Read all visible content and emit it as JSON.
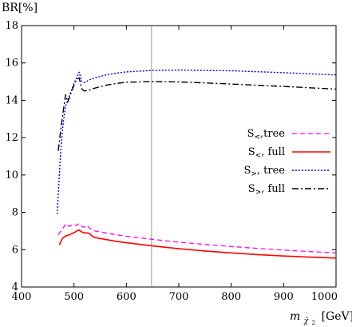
{
  "chart_data": {
    "type": "line",
    "title": "",
    "ylabel": "BR[%]",
    "xlabel": "m_{χ̃₂} [GeV]",
    "xlabel_main": "m",
    "xlabel_sub": "χ̃",
    "xlabel_subsub": "2",
    "xlabel_unit": "[GeV]",
    "xlim": [
      400,
      1000
    ],
    "ylim": [
      4,
      18
    ],
    "xticks": [
      400,
      500,
      600,
      700,
      800,
      900,
      1000
    ],
    "yticks": [
      4,
      6,
      8,
      10,
      12,
      14,
      16,
      18
    ],
    "grid": false,
    "legend_position": "right",
    "reference_line_x": 648,
    "series": [
      {
        "name": "S<,tree",
        "legend_main": "S",
        "legend_sub": "<",
        "legend_rest": ",tree",
        "color": "#ff00ff",
        "dash": "6,4",
        "width": 1.3,
        "x": [
          470,
          478,
          485,
          490,
          495,
          500,
          505,
          510,
          515,
          520,
          525,
          530,
          535,
          540,
          550,
          560,
          580,
          600,
          650,
          700,
          750,
          800,
          850,
          900,
          950,
          1000
        ],
        "y": [
          6.8,
          7.1,
          7.4,
          7.25,
          7.3,
          7.35,
          7.3,
          7.4,
          7.25,
          7.2,
          7.3,
          7.15,
          7.05,
          7.0,
          6.95,
          6.9,
          6.8,
          6.72,
          6.55,
          6.4,
          6.28,
          6.17,
          6.07,
          5.98,
          5.9,
          5.83
        ]
      },
      {
        "name": "S<, full",
        "legend_main": "S",
        "legend_sub": "<",
        "legend_rest": ", full",
        "color": "#ff0000",
        "dash": "",
        "width": 1.6,
        "x": [
          472,
          478,
          485,
          490,
          495,
          500,
          505,
          510,
          515,
          520,
          525,
          530,
          535,
          540,
          550,
          560,
          580,
          600,
          650,
          700,
          750,
          800,
          850,
          900,
          950,
          1000
        ],
        "y": [
          6.25,
          6.6,
          6.75,
          6.78,
          6.85,
          6.9,
          7.0,
          7.05,
          6.95,
          6.9,
          6.9,
          6.85,
          6.72,
          6.65,
          6.6,
          6.55,
          6.45,
          6.37,
          6.2,
          6.05,
          5.93,
          5.83,
          5.74,
          5.66,
          5.6,
          5.55
        ]
      },
      {
        "name": "S>, tree",
        "legend_main": "S",
        "legend_sub": ">",
        "legend_rest": ", tree",
        "color": "#0000ff",
        "dash": "2,2",
        "width": 1.4,
        "x": [
          468,
          472,
          476,
          480,
          484,
          488,
          492,
          496,
          500,
          505,
          510,
          515,
          520,
          530,
          540,
          560,
          580,
          600,
          650,
          700,
          750,
          800,
          850,
          900,
          950,
          1000
        ],
        "y": [
          7.9,
          10.0,
          11.8,
          12.9,
          13.7,
          14.0,
          14.3,
          14.6,
          14.9,
          15.2,
          15.5,
          15.0,
          14.95,
          15.1,
          15.2,
          15.35,
          15.45,
          15.52,
          15.6,
          15.62,
          15.6,
          15.58,
          15.53,
          15.48,
          15.42,
          15.36
        ]
      },
      {
        "name": "S>, full",
        "legend_main": "S",
        "legend_sub": ">",
        "legend_rest": ", full",
        "color": "#000000",
        "dash": "8,3,2,3",
        "width": 1.4,
        "x": [
          470,
          475,
          480,
          484,
          488,
          492,
          496,
          500,
          505,
          510,
          515,
          520,
          530,
          540,
          560,
          580,
          600,
          650,
          700,
          750,
          800,
          850,
          900,
          950,
          1000
        ],
        "y": [
          11.3,
          12.5,
          13.5,
          14.3,
          13.9,
          14.2,
          14.5,
          14.8,
          15.1,
          15.2,
          14.6,
          14.5,
          14.55,
          14.65,
          14.8,
          14.9,
          14.97,
          15.0,
          14.98,
          14.93,
          14.87,
          14.8,
          14.74,
          14.67,
          14.6
        ]
      }
    ]
  }
}
